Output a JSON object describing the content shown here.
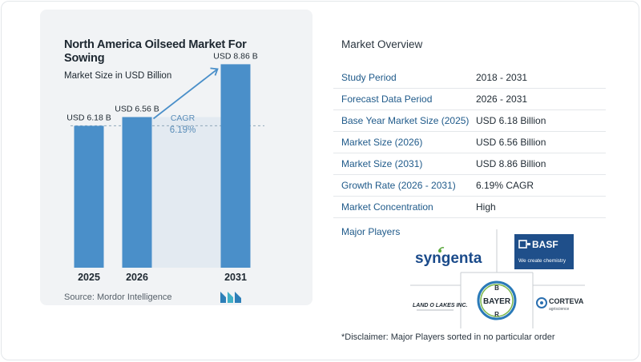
{
  "chart_data": {
    "type": "bar",
    "title": "North America Oilseed Market For Sowing",
    "subtitle": "Market Size in USD Billion",
    "categories": [
      "2025",
      "2026",
      "2031"
    ],
    "values": [
      6.18,
      6.56,
      8.86
    ],
    "data_labels": [
      "USD 6.18 B",
      "USD 6.56 B",
      "USD 8.86 B"
    ],
    "cagr_label": "CAGR",
    "cagr_value": "6.19%",
    "ylim": [
      0,
      9.5
    ],
    "colors": {
      "bar": "#4a8fc9",
      "shade": "#e3eaf1",
      "arrow": "#4a8fc9",
      "cagr_text": "#5a8db8"
    }
  },
  "source": "Source:  Mordor Intelligence",
  "overview": {
    "title": "Market Overview",
    "rows": [
      {
        "key": "Study Period",
        "value": "2018 - 2031"
      },
      {
        "key": "Forecast Data Period",
        "value": "2026 - 2031"
      },
      {
        "key": "Base Year Market Size (2025)",
        "value": "USD 6.18 Billion"
      },
      {
        "key": "Market Size (2026)",
        "value": "USD 6.56 Billion"
      },
      {
        "key": "Market Size (2031)",
        "value": "USD 8.86 Billion"
      },
      {
        "key": "Growth Rate (2026 - 2031)",
        "value": "6.19% CAGR"
      },
      {
        "key": "Market Concentration",
        "value": "High"
      }
    ]
  },
  "players": {
    "label": "Major Players",
    "syngenta": "syngenta",
    "basf_name": "BASF",
    "basf_tagline": "We create chemistry",
    "landolakes": "LAND O LAKES INC.",
    "bayer": "BAYER",
    "corteva": "CORTEVA",
    "corteva_sub": "agriscience"
  },
  "disclaimer": "*Disclaimer: Major Players sorted in no particular order"
}
